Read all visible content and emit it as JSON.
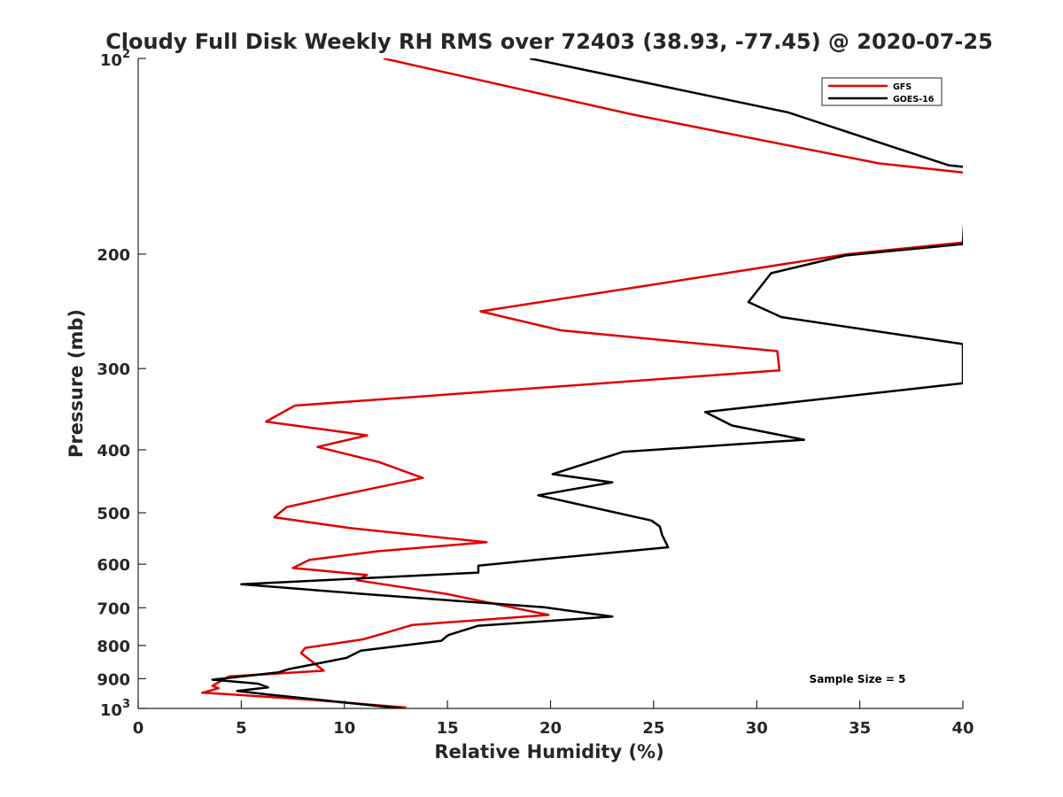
{
  "chart_data": {
    "type": "line",
    "title": "Cloudy Full Disk Weekly RH RMS over 72403 (38.93, -77.45) @ 2020-07-25",
    "xlabel": "Relative Humidity (%)",
    "ylabel": "Pressure (mb)",
    "xlim": [
      0,
      40
    ],
    "ylim": [
      100,
      1000
    ],
    "y_scale": "log",
    "y_reversed": true,
    "x_ticks": [
      0,
      5,
      10,
      15,
      20,
      25,
      30,
      35,
      40
    ],
    "y_ticks": [
      {
        "value": 100,
        "base": "10",
        "exp": "2"
      },
      {
        "value": 200,
        "label": "200"
      },
      {
        "value": 300,
        "label": "300"
      },
      {
        "value": 400,
        "label": "400"
      },
      {
        "value": 500,
        "label": "500"
      },
      {
        "value": 600,
        "label": "600"
      },
      {
        "value": 700,
        "label": "700"
      },
      {
        "value": 800,
        "label": "800"
      },
      {
        "value": 900,
        "label": "900"
      },
      {
        "value": 1000,
        "base": "10",
        "exp": "3"
      }
    ],
    "legend_position": "top-right",
    "grid": false,
    "series": [
      {
        "name": "GFS",
        "color": "#e00000",
        "points": [
          [
            11.9,
            100
          ],
          [
            24.0,
            122
          ],
          [
            35.9,
            145
          ],
          [
            40.2,
            150
          ],
          [
            40,
            192
          ],
          [
            34.4,
            200
          ],
          [
            24.5,
            224
          ],
          [
            16.6,
            245
          ],
          [
            20.5,
            262
          ],
          [
            31.0,
            282
          ],
          [
            31.1,
            302
          ],
          [
            7.6,
            342
          ],
          [
            6.2,
            362
          ],
          [
            11.1,
            380
          ],
          [
            8.7,
            396
          ],
          [
            11.7,
            418
          ],
          [
            13.8,
            442
          ],
          [
            9.5,
            472
          ],
          [
            7.2,
            490
          ],
          [
            6.6,
            508
          ],
          [
            10.3,
            528
          ],
          [
            16.9,
            555
          ],
          [
            11.6,
            573
          ],
          [
            8.3,
            591
          ],
          [
            7.5,
            608
          ],
          [
            11.1,
            623
          ],
          [
            10.6,
            635
          ],
          [
            15.0,
            667
          ],
          [
            19.9,
            718
          ],
          [
            13.3,
            744
          ],
          [
            11.7,
            770
          ],
          [
            10.9,
            783
          ],
          [
            8.1,
            807
          ],
          [
            7.9,
            822
          ],
          [
            9.0,
            875
          ],
          [
            4.4,
            893
          ],
          [
            3.6,
            923
          ],
          [
            3.9,
            931
          ],
          [
            3.1,
            946
          ],
          [
            4.4,
            951
          ],
          [
            8.4,
            970
          ],
          [
            13.0,
            997
          ]
        ]
      },
      {
        "name": "GOES-16",
        "color": "#000000",
        "points": [
          [
            19.0,
            100
          ],
          [
            31.5,
            121
          ],
          [
            39.3,
            146
          ],
          [
            40.2,
            147
          ],
          [
            40,
            193
          ],
          [
            34.3,
            201
          ],
          [
            30.7,
            214
          ],
          [
            29.6,
            237
          ],
          [
            31.2,
            250
          ],
          [
            40,
            275
          ],
          [
            40,
            316
          ],
          [
            27.5,
            350
          ],
          [
            28.8,
            367
          ],
          [
            32.3,
            386
          ],
          [
            23.5,
            403
          ],
          [
            20.1,
            436
          ],
          [
            23.0,
            449
          ],
          [
            19.4,
            470
          ],
          [
            24.9,
            514
          ],
          [
            25.3,
            525
          ],
          [
            25.4,
            540
          ],
          [
            25.7,
            565
          ],
          [
            19.5,
            590
          ],
          [
            16.5,
            603
          ],
          [
            16.5,
            618
          ],
          [
            5.0,
            644
          ],
          [
            11.0,
            667
          ],
          [
            19.7,
            699
          ],
          [
            23.0,
            722
          ],
          [
            16.5,
            746
          ],
          [
            15.1,
            770
          ],
          [
            15.0,
            773
          ],
          [
            14.7,
            787
          ],
          [
            10.8,
            815
          ],
          [
            10.1,
            836
          ],
          [
            7.3,
            870
          ],
          [
            6.8,
            880
          ],
          [
            3.6,
            903
          ],
          [
            5.8,
            916
          ],
          [
            6.3,
            928
          ],
          [
            4.8,
            940
          ],
          [
            6.3,
            952
          ],
          [
            12.8,
            1000
          ]
        ]
      }
    ],
    "annotations": [
      {
        "text": "Sample Size = 5"
      }
    ]
  }
}
